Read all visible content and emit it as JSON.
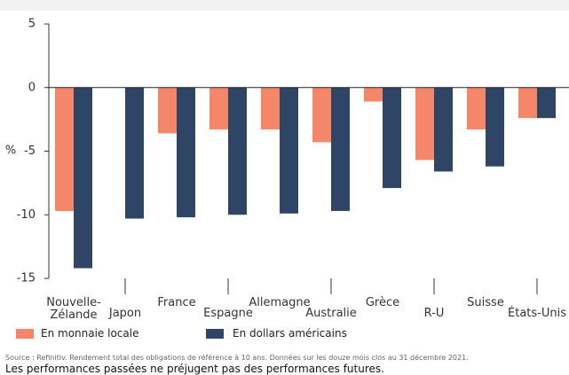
{
  "chart_data": {
    "type": "bar",
    "y_label": "%",
    "categories": [
      "Nouvelle-Zélande",
      "Japon",
      "France",
      "Espagne",
      "Allemagne",
      "Australie",
      "Grèce",
      "R-U",
      "Suisse",
      "États-Unis"
    ],
    "series": [
      {
        "name": "En monnaie locale",
        "color": "#f4876a",
        "values": [
          -9.7,
          0,
          -3.6,
          -3.3,
          -3.3,
          -4.3,
          -1.1,
          -5.7,
          -3.3,
          -2.4
        ]
      },
      {
        "name": "En dollars américains",
        "color": "#2e4566",
        "values": [
          -14.2,
          -10.3,
          -10.2,
          -10.0,
          -9.9,
          -9.7,
          -7.9,
          -6.6,
          -6.2,
          -2.4
        ]
      }
    ],
    "ylim": [
      -15,
      5
    ],
    "yticks": [
      -15,
      -10,
      -5,
      0,
      5
    ],
    "source": "Source : Refinitiv. Rendement total des obligations de référence à 10 ans. Données sur les douze mois clos au 31 décembre 2021.",
    "disclaimer": "Les performances passées ne préjugent pas des performances futures."
  }
}
